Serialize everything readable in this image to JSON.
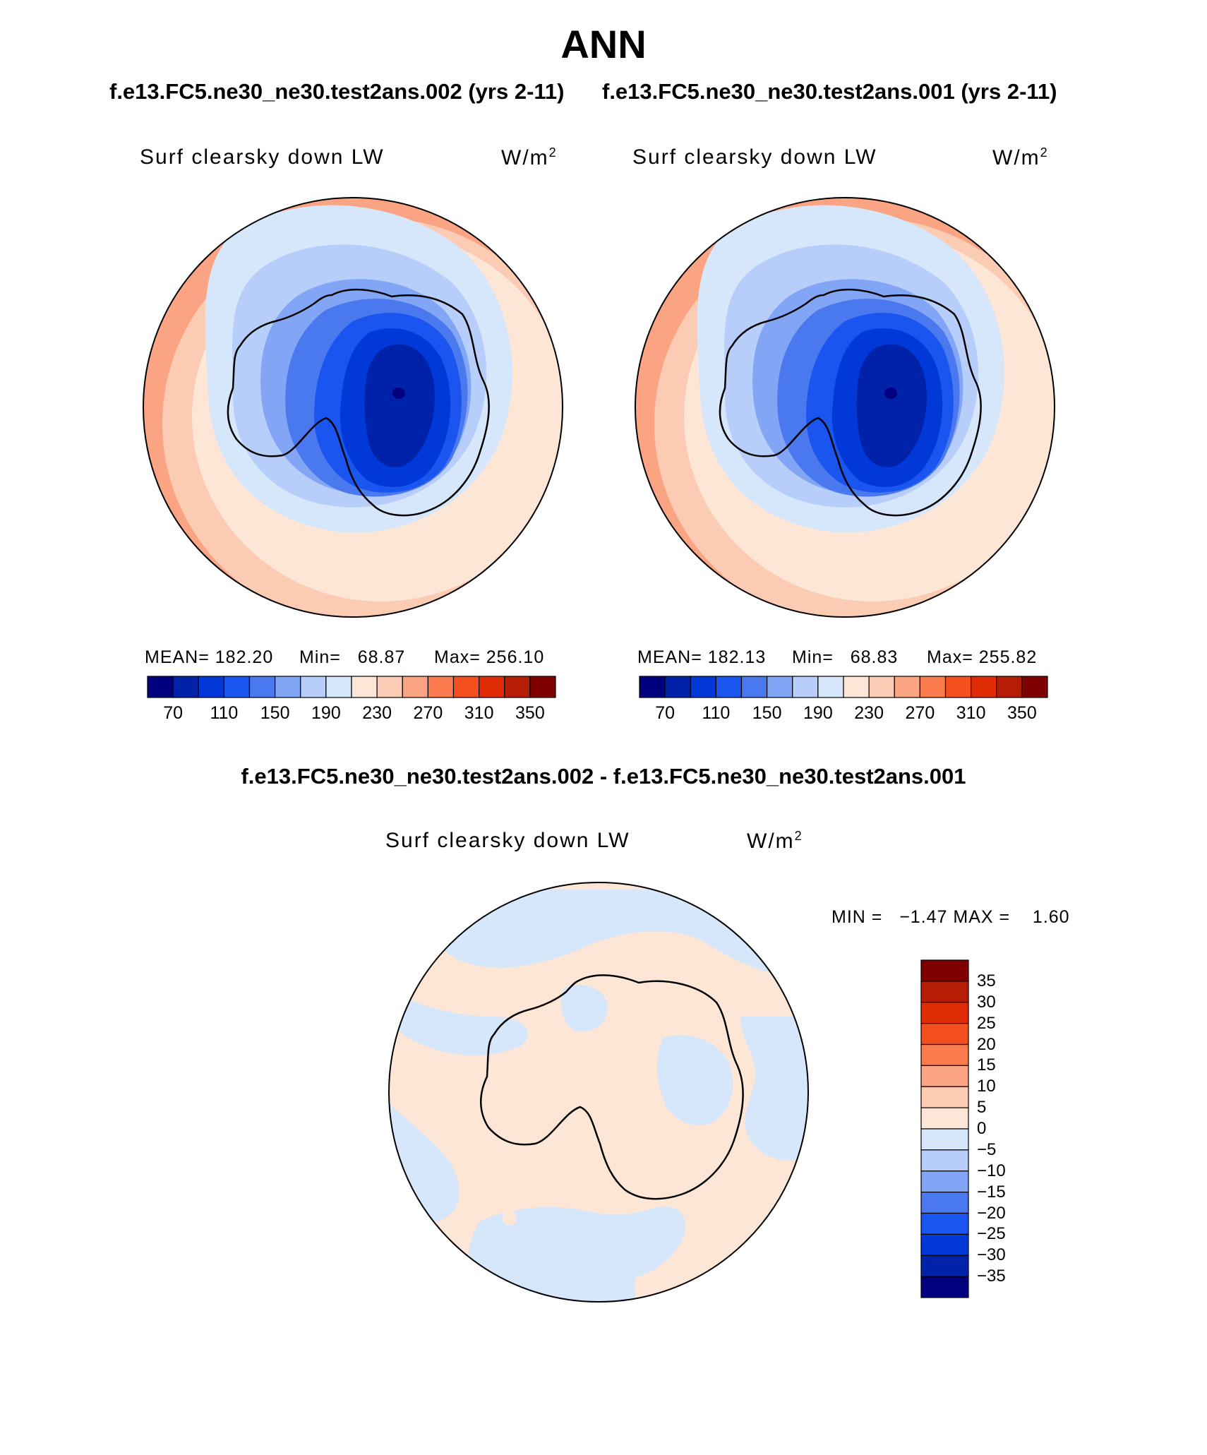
{
  "figure": {
    "title": "ANN",
    "subtitle_left": "f.e13.FC5.ne30_ne30.test2ans.002 (yrs 2-11)",
    "subtitle_right": "f.e13.FC5.ne30_ne30.test2ans.001 (yrs 2-11)",
    "diff_title": "f.e13.FC5.ne30_ne30.test2ans.002 - f.e13.FC5.ne30_ne30.test2ans.001"
  },
  "panels": [
    {
      "variable": "Surf clearsky down LW",
      "units": "W/m",
      "units_sup": "2",
      "mean_label": "MEAN= 182.20",
      "min_label": "Min=   68.87",
      "max_label": "Max= 256.10",
      "mean": 182.2,
      "min": 68.87,
      "max": 256.1
    },
    {
      "variable": "Surf clearsky down LW",
      "units": "W/m",
      "units_sup": "2",
      "mean_label": "MEAN= 182.13",
      "min_label": "Min=   68.83",
      "max_label": "Max= 255.82",
      "mean": 182.13,
      "min": 68.83,
      "max": 255.82
    }
  ],
  "diff_panel": {
    "variable": "Surf clearsky down LW",
    "units": "W/m",
    "units_sup": "2",
    "minmax_label": "MIN =   −1.47 MAX =    1.60",
    "min": -1.47,
    "max": 1.6
  },
  "colorbar_main": {
    "tick_labels": [
      "70",
      "110",
      "150",
      "190",
      "230",
      "270",
      "310",
      "350"
    ],
    "colors": [
      "#00007f",
      "#0022a8",
      "#0039d8",
      "#1a55ef",
      "#4a78ee",
      "#82a6f5",
      "#b7cdfa",
      "#d6e6fb",
      "#fde6d6",
      "#fccbb4",
      "#fba484",
      "#f97b4e",
      "#f3501e",
      "#e02d06",
      "#b51e05",
      "#7f0000"
    ]
  },
  "colorbar_diff": {
    "tick_labels": [
      "35",
      "30",
      "25",
      "20",
      "15",
      "10",
      "5",
      "0",
      "−5",
      "−10",
      "−15",
      "−20",
      "−25",
      "−30",
      "−35"
    ],
    "colors_top_to_bottom": [
      "#7f0000",
      "#b51e05",
      "#e02d06",
      "#f3501e",
      "#f97b4e",
      "#fba484",
      "#fccbb4",
      "#fde6d6",
      "#d6e6fb",
      "#b7cdfa",
      "#82a6f5",
      "#4a78ee",
      "#1a55ef",
      "#0039d8",
      "#0022a8",
      "#00007f"
    ]
  }
}
